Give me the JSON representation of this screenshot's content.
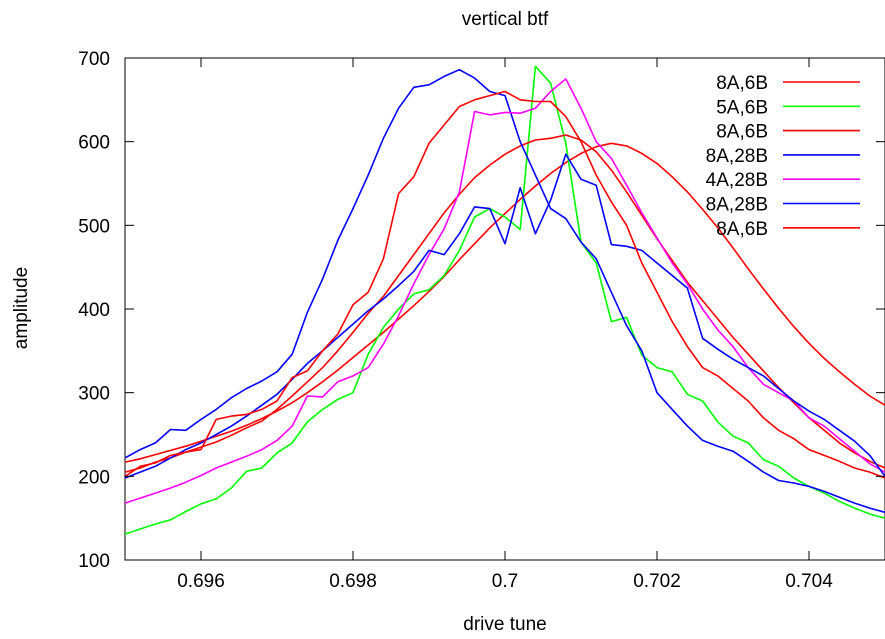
{
  "chart_data": {
    "type": "line",
    "title": "vertical btf",
    "xlabel": "drive tune",
    "ylabel": "amplitude",
    "xlim": [
      0.695,
      0.705
    ],
    "ylim": [
      100,
      700
    ],
    "xticks": [
      "0.696",
      "0.698",
      "0.7",
      "0.702",
      "0.704"
    ],
    "yticks": [
      "100",
      "200",
      "300",
      "400",
      "500",
      "600",
      "700"
    ],
    "grid": false,
    "legend_position": "top-right",
    "series": [
      {
        "name": "8A,6B",
        "color": "#ff0000",
        "x": [
          0.695,
          0.6952,
          0.6954,
          0.6956,
          0.6958,
          0.696,
          0.6962,
          0.6964,
          0.6966,
          0.6968,
          0.697,
          0.6972,
          0.6974,
          0.6976,
          0.6978,
          0.698,
          0.6982,
          0.6984,
          0.6986,
          0.6988,
          0.699,
          0.6992,
          0.6994,
          0.6996,
          0.6998,
          0.7,
          0.7002,
          0.7004,
          0.7006,
          0.7008,
          0.701,
          0.7012,
          0.7014,
          0.7016,
          0.7018,
          0.702,
          0.7022,
          0.7024,
          0.7026,
          0.7028,
          0.703,
          0.7032,
          0.7034,
          0.7036,
          0.7038,
          0.704,
          0.7042,
          0.7044,
          0.7046,
          0.7048,
          0.705
        ],
        "y": [
          217,
          221,
          226,
          231,
          236,
          242,
          248,
          254,
          261,
          269,
          278,
          288,
          300,
          313,
          327,
          342,
          357,
          372,
          388,
          404,
          421,
          439,
          459,
          478,
          497,
          514,
          531,
          547,
          562,
          575,
          586,
          594,
          598,
          595,
          586,
          574,
          558,
          540,
          519,
          497,
          473,
          448,
          424,
          401,
          379,
          359,
          341,
          325,
          310,
          296,
          285
        ]
      },
      {
        "name": "5A,6B",
        "color": "#00ff00",
        "x": [
          0.695,
          0.6952,
          0.6954,
          0.6956,
          0.6958,
          0.696,
          0.6962,
          0.6964,
          0.6966,
          0.6968,
          0.697,
          0.6972,
          0.6974,
          0.6976,
          0.6978,
          0.698,
          0.6982,
          0.6984,
          0.6986,
          0.6988,
          0.699,
          0.6992,
          0.6994,
          0.6996,
          0.6998,
          0.7,
          0.7002,
          0.7004,
          0.7006,
          0.7008,
          0.701,
          0.7012,
          0.7014,
          0.7016,
          0.7018,
          0.702,
          0.7022,
          0.7024,
          0.7026,
          0.7028,
          0.703,
          0.7032,
          0.7034,
          0.7036,
          0.7038,
          0.704,
          0.7042,
          0.7044,
          0.7046,
          0.7048,
          0.705
        ],
        "y": [
          131,
          137,
          143,
          148,
          158,
          167,
          173,
          186,
          206,
          210,
          228,
          240,
          265,
          280,
          292,
          300,
          346,
          378,
          400,
          418,
          423,
          440,
          470,
          510,
          520,
          510,
          495,
          690,
          670,
          598,
          480,
          455,
          385,
          390,
          345,
          330,
          325,
          298,
          290,
          265,
          248,
          240,
          220,
          212,
          198,
          188,
          180,
          170,
          162,
          155,
          150
        ]
      },
      {
        "name": "8A,6B",
        "color": "#ff0000",
        "x": [
          0.695,
          0.6952,
          0.6954,
          0.6956,
          0.6958,
          0.696,
          0.6962,
          0.6964,
          0.6966,
          0.6968,
          0.697,
          0.6972,
          0.6974,
          0.6976,
          0.6978,
          0.698,
          0.6982,
          0.6984,
          0.6986,
          0.6988,
          0.699,
          0.6992,
          0.6994,
          0.6996,
          0.6998,
          0.7,
          0.7002,
          0.7004,
          0.7006,
          0.7008,
          0.701,
          0.7012,
          0.7014,
          0.7016,
          0.7018,
          0.702,
          0.7022,
          0.7024,
          0.7026,
          0.7028,
          0.703,
          0.7032,
          0.7034,
          0.7036,
          0.7038,
          0.704,
          0.7042,
          0.7044,
          0.7046,
          0.7048,
          0.705
        ],
        "y": [
          205,
          210,
          217,
          222,
          229,
          235,
          241,
          249,
          258,
          266,
          280,
          296,
          313,
          330,
          350,
          372,
          395,
          415,
          440,
          465,
          490,
          515,
          537,
          557,
          572,
          585,
          595,
          602,
          604,
          608,
          602,
          588,
          566,
          540,
          512,
          484,
          458,
          432,
          410,
          388,
          366,
          346,
          326,
          306,
          288,
          270,
          255,
          240,
          228,
          218,
          210
        ]
      },
      {
        "name": "8A,28B",
        "color": "#0000ff",
        "x": [
          0.695,
          0.6952,
          0.6954,
          0.6956,
          0.6958,
          0.696,
          0.6962,
          0.6964,
          0.6966,
          0.6968,
          0.697,
          0.6972,
          0.6974,
          0.6976,
          0.6978,
          0.698,
          0.6982,
          0.6984,
          0.6986,
          0.6988,
          0.699,
          0.6992,
          0.6994,
          0.6996,
          0.6998,
          0.7,
          0.7002,
          0.7004,
          0.7006,
          0.7008,
          0.701,
          0.7012,
          0.7014,
          0.7016,
          0.7018,
          0.702,
          0.7022,
          0.7024,
          0.7026,
          0.7028,
          0.703,
          0.7032,
          0.7034,
          0.7036,
          0.7038,
          0.704,
          0.7042,
          0.7044,
          0.7046,
          0.7048,
          0.705
        ],
        "y": [
          222,
          232,
          240,
          256,
          255,
          268,
          280,
          294,
          305,
          314,
          325,
          346,
          396,
          436,
          482,
          520,
          560,
          604,
          640,
          665,
          668,
          678,
          686,
          676,
          660,
          655,
          600,
          560,
          520,
          508,
          480,
          460,
          420,
          380,
          350,
          300,
          280,
          260,
          243,
          236,
          230,
          218,
          205,
          195,
          192,
          188,
          182,
          175,
          168,
          162,
          157
        ]
      },
      {
        "name": "4A,28B",
        "color": "#ff00ff",
        "x": [
          0.695,
          0.6952,
          0.6954,
          0.6956,
          0.6958,
          0.696,
          0.6962,
          0.6964,
          0.6966,
          0.6968,
          0.697,
          0.6972,
          0.6974,
          0.6976,
          0.6978,
          0.698,
          0.6982,
          0.6984,
          0.6986,
          0.6988,
          0.699,
          0.6992,
          0.6994,
          0.6996,
          0.6998,
          0.7,
          0.7002,
          0.7004,
          0.7006,
          0.7008,
          0.701,
          0.7012,
          0.7014,
          0.7016,
          0.7018,
          0.702,
          0.7022,
          0.7024,
          0.7026,
          0.7028,
          0.703,
          0.7032,
          0.7034,
          0.7036,
          0.7038,
          0.704,
          0.7042,
          0.7044,
          0.7046,
          0.7048,
          0.705
        ],
        "y": [
          168,
          174,
          180,
          186,
          193,
          201,
          210,
          217,
          224,
          232,
          243,
          260,
          296,
          295,
          313,
          320,
          330,
          358,
          392,
          430,
          465,
          496,
          540,
          636,
          632,
          635,
          634,
          640,
          660,
          675,
          640,
          600,
          580,
          548,
          515,
          485,
          455,
          430,
          400,
          375,
          355,
          330,
          310,
          300,
          290,
          270,
          260,
          245,
          230,
          215,
          205
        ]
      },
      {
        "name": "8A,28B",
        "color": "#0000ff",
        "x": [
          0.695,
          0.6952,
          0.6954,
          0.6956,
          0.6958,
          0.696,
          0.6962,
          0.6964,
          0.6966,
          0.6968,
          0.697,
          0.6972,
          0.6974,
          0.6976,
          0.6978,
          0.698,
          0.6982,
          0.6984,
          0.6986,
          0.6988,
          0.699,
          0.6992,
          0.6994,
          0.6996,
          0.6998,
          0.7,
          0.7002,
          0.7004,
          0.7006,
          0.7008,
          0.701,
          0.7012,
          0.7014,
          0.7016,
          0.7018,
          0.702,
          0.7022,
          0.7024,
          0.7026,
          0.7028,
          0.703,
          0.7032,
          0.7034,
          0.7036,
          0.7038,
          0.704,
          0.7042,
          0.7044,
          0.7046,
          0.7048,
          0.705
        ],
        "y": [
          198,
          205,
          212,
          222,
          232,
          240,
          250,
          260,
          272,
          285,
          298,
          316,
          335,
          350,
          366,
          382,
          398,
          412,
          428,
          445,
          470,
          465,
          490,
          522,
          520,
          478,
          545,
          490,
          530,
          585,
          555,
          548,
          477,
          475,
          470,
          455,
          440,
          425,
          365,
          352,
          340,
          330,
          320,
          305,
          290,
          278,
          268,
          255,
          242,
          225,
          200
        ]
      },
      {
        "name": "8A,6B",
        "color": "#ff0000",
        "x": [
          0.695,
          0.6952,
          0.6954,
          0.6956,
          0.6958,
          0.696,
          0.6962,
          0.6964,
          0.6966,
          0.6968,
          0.697,
          0.6972,
          0.6974,
          0.6976,
          0.6978,
          0.698,
          0.6982,
          0.6984,
          0.6986,
          0.6988,
          0.699,
          0.6992,
          0.6994,
          0.6996,
          0.6998,
          0.7,
          0.7002,
          0.7004,
          0.7006,
          0.7008,
          0.701,
          0.7012,
          0.7014,
          0.7016,
          0.7018,
          0.702,
          0.7022,
          0.7024,
          0.7026,
          0.7028,
          0.703,
          0.7032,
          0.7034,
          0.7036,
          0.7038,
          0.704,
          0.7042,
          0.7044,
          0.7046,
          0.7048,
          0.705
        ],
        "y": [
          200,
          212,
          216,
          225,
          229,
          232,
          268,
          272,
          274,
          280,
          290,
          318,
          326,
          350,
          370,
          405,
          420,
          460,
          538,
          558,
          598,
          620,
          642,
          650,
          655,
          660,
          650,
          648,
          648,
          630,
          600,
          560,
          528,
          500,
          455,
          420,
          385,
          355,
          330,
          320,
          305,
          290,
          270,
          255,
          245,
          232,
          225,
          218,
          210,
          205,
          198
        ]
      }
    ]
  }
}
